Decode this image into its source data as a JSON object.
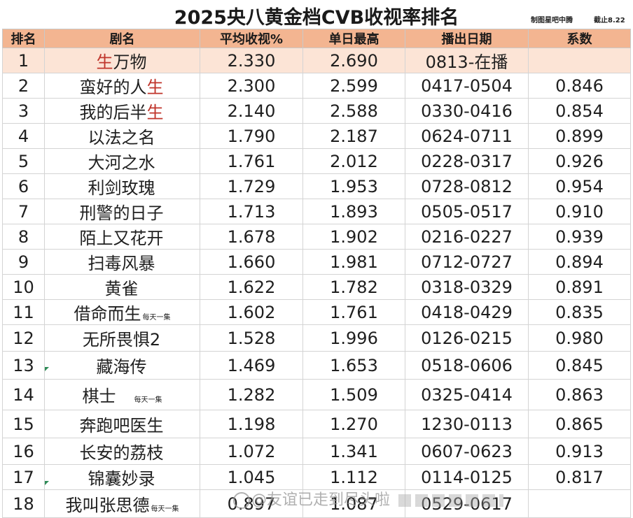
{
  "title": "2025央八黄金档CVB收视率排名",
  "credit_maker": "制图星吧中腾",
  "credit_date": "截止8.22",
  "headers": [
    "排名",
    "剧名",
    "平均收视%",
    "单日最高",
    "播出日期",
    "系数"
  ],
  "rows": [
    {
      "rank": "1",
      "name_pre": "",
      "name_hl": "生",
      "name_post": "万物",
      "note": "",
      "avg": "2.330",
      "peak": "2.690",
      "dates": "0813-在播",
      "coef": ""
    },
    {
      "rank": "2",
      "name_pre": "蛮好的人",
      "name_hl": "生",
      "name_post": "",
      "note": "",
      "avg": "2.300",
      "peak": "2.599",
      "dates": "0417-0504",
      "coef": "0.846"
    },
    {
      "rank": "3",
      "name_pre": "我的后半",
      "name_hl": "生",
      "name_post": "",
      "note": "",
      "avg": "2.140",
      "peak": "2.588",
      "dates": "0330-0416",
      "coef": "0.854"
    },
    {
      "rank": "4",
      "name_pre": "以法之名",
      "name_hl": "",
      "name_post": "",
      "note": "",
      "avg": "1.790",
      "peak": "2.187",
      "dates": "0624-0711",
      "coef": "0.899"
    },
    {
      "rank": "5",
      "name_pre": "大河之水",
      "name_hl": "",
      "name_post": "",
      "note": "",
      "avg": "1.761",
      "peak": "2.012",
      "dates": "0228-0317",
      "coef": "0.926"
    },
    {
      "rank": "6",
      "name_pre": "利剑玫瑰",
      "name_hl": "",
      "name_post": "",
      "note": "",
      "avg": "1.729",
      "peak": "1.953",
      "dates": "0728-0812",
      "coef": "0.954"
    },
    {
      "rank": "7",
      "name_pre": "刑警的日子",
      "name_hl": "",
      "name_post": "",
      "note": "",
      "avg": "1.713",
      "peak": "1.893",
      "dates": "0505-0517",
      "coef": "0.910"
    },
    {
      "rank": "8",
      "name_pre": "陌上又花开",
      "name_hl": "",
      "name_post": "",
      "note": "",
      "avg": "1.678",
      "peak": "1.902",
      "dates": "0216-0227",
      "coef": "0.939"
    },
    {
      "rank": "9",
      "name_pre": "扫毒风暴",
      "name_hl": "",
      "name_post": "",
      "note": "",
      "avg": "1.660",
      "peak": "1.981",
      "dates": "0712-0727",
      "coef": "0.894"
    },
    {
      "rank": "10",
      "name_pre": "黄雀",
      "name_hl": "",
      "name_post": "",
      "note": "",
      "avg": "1.622",
      "peak": "1.782",
      "dates": "0318-0329",
      "coef": "0.891"
    },
    {
      "rank": "11",
      "name_pre": "借命而生",
      "name_hl": "",
      "name_post": "",
      "note": "每天一集",
      "avg": "1.602",
      "peak": "1.761",
      "dates": "0418-0429",
      "coef": "0.835"
    },
    {
      "rank": "12",
      "name_pre": "无所畏惧2",
      "name_hl": "",
      "name_post": "",
      "note": "",
      "avg": "1.528",
      "peak": "1.996",
      "dates": "0126-0215",
      "coef": "0.980"
    },
    {
      "rank": "13",
      "name_pre": "藏海传",
      "name_hl": "",
      "name_post": "",
      "note": "",
      "avg": "1.469",
      "peak": "1.653",
      "dates": "0518-0606",
      "coef": "0.845"
    },
    {
      "rank": "14",
      "name_pre": "棋士",
      "name_hl": "",
      "name_post": "",
      "note": "每天一集",
      "avg": "1.282",
      "peak": "1.509",
      "dates": "0325-0414",
      "coef": "0.863"
    },
    {
      "rank": "15",
      "name_pre": "奔跑吧医生",
      "name_hl": "",
      "name_post": "",
      "note": "",
      "avg": "1.198",
      "peak": "1.270",
      "dates": "1230-0113",
      "coef": "0.865"
    },
    {
      "rank": "16",
      "name_pre": "长安的荔枝",
      "name_hl": "",
      "name_post": "",
      "note": "",
      "avg": "1.072",
      "peak": "1.341",
      "dates": "0607-0623",
      "coef": "0.913"
    },
    {
      "rank": "17",
      "name_pre": "锦囊妙录",
      "name_hl": "",
      "name_post": "",
      "note": "",
      "avg": "1.045",
      "peak": "1.112",
      "dates": "0114-0125",
      "coef": "0.817"
    },
    {
      "rank": "18",
      "name_pre": "我叫张思德",
      "name_hl": "",
      "name_post": "",
      "note": "每天一集",
      "avg": "0.897",
      "peak": "1.087",
      "dates": "0529-0617",
      "coef": ""
    }
  ],
  "watermark": "@友谊已走到尽头啦",
  "colors": {
    "header_bg": "#f3b591",
    "first_row_bg": "#fce4d6",
    "highlight": "#c0362c"
  }
}
